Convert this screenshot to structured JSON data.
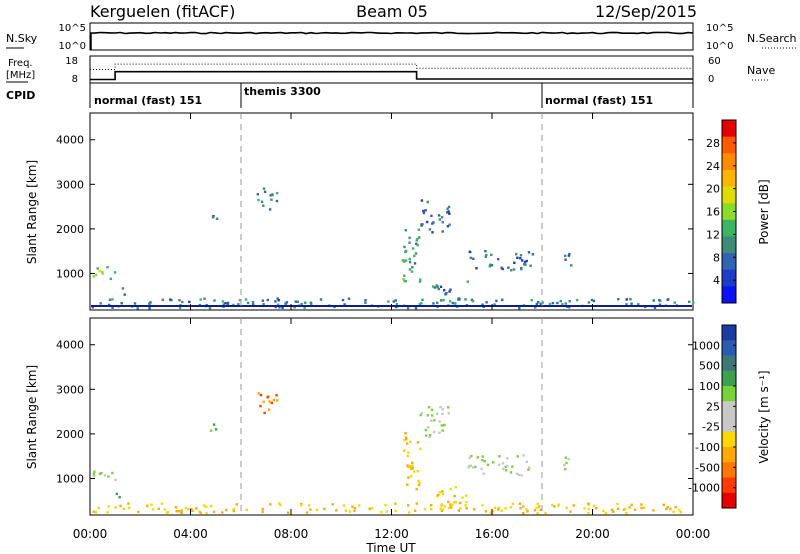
{
  "header": {
    "station": "Kerguelen (fitACF)",
    "beam": "Beam 05",
    "date": "12/Sep/2015"
  },
  "top_panels": {
    "nsky": {
      "label": "N.Sky",
      "right_label": "N.Search",
      "left_ticks": [
        "10^5",
        "10^0"
      ],
      "right_ticks": [
        "10^5",
        "10^0"
      ]
    },
    "freq": {
      "label_line1": "Freq.",
      "label_line2": "[MHz]",
      "right_label": "Nave",
      "left_ticks": [
        "18",
        "8"
      ],
      "right_ticks": [
        "60",
        "0"
      ],
      "freq_steps": [
        [
          0,
          9.3
        ],
        [
          1.0,
          12.2
        ],
        [
          13.0,
          9.5
        ],
        [
          24.0,
          9.5
        ]
      ],
      "nave_steps": [
        [
          0,
          30
        ],
        [
          1.0,
          42
        ],
        [
          13.0,
          33
        ],
        [
          24.0,
          33
        ]
      ]
    },
    "cpid": {
      "label": "CPID",
      "segments": [
        {
          "start": 0,
          "text": "normal (fast) 151"
        },
        {
          "start": 6,
          "text": "themis 3300"
        },
        {
          "start": 18,
          "text": "normal (fast) 151"
        }
      ]
    }
  },
  "panels": {
    "power": {
      "ylabel": "Slant Range [km]",
      "cbar_label": "Power [dB]",
      "cbar_ticks": [
        "28",
        "24",
        "20",
        "16",
        "12",
        "8",
        "4"
      ],
      "cbar_colors": [
        "#e60000",
        "#ff5a00",
        "#ff8c00",
        "#ffb400",
        "#e1dc00",
        "#8cdc28",
        "#3cb464",
        "#3c8c78",
        "#3264b4",
        "#1e3cc8",
        "#0a14f0"
      ]
    },
    "velocity": {
      "ylabel": "Slant Range [km]",
      "cbar_label": "Velocity [m s⁻¹]",
      "cbar_ticks": [
        "1000",
        "500",
        "100",
        "25",
        "-25",
        "-100",
        "-500",
        "-1000"
      ],
      "cbar_colors": [
        "#1a3ca0",
        "#2a5ab4",
        "#3c7878",
        "#3ca050",
        "#78d23c",
        "#c8c8c8",
        "#c8c8c8",
        "#ffd700",
        "#ffaa00",
        "#ff7800",
        "#ff3c00",
        "#e60000"
      ]
    }
  },
  "axes": {
    "xlabel": "Time UT",
    "x_ticks": [
      "00:00",
      "04:00",
      "08:00",
      "12:00",
      "16:00",
      "20:00",
      "00:00"
    ],
    "y_ticks": [
      "4000",
      "3000",
      "2000",
      "1000"
    ]
  },
  "chart_data": {
    "type": "heatmap",
    "title": "Kerguelen (fitACF) Beam 05 12/Sep/2015",
    "xlabel": "Time UT",
    "ylabel": "Slant Range [km]",
    "xlim_hours": [
      0,
      24
    ],
    "ylim_km": [
      180,
      4600
    ],
    "gate_boundaries_hours": [
      6,
      18
    ],
    "scatter_regions": [
      {
        "t0": 0.0,
        "t1": 1.0,
        "r0": 850,
        "r1": 1150,
        "power_db": 14,
        "velocity": 25
      },
      {
        "t0": 1.0,
        "t1": 1.4,
        "r0": 500,
        "r1": 700,
        "power_db": 10,
        "velocity": 100
      },
      {
        "t0": 4.7,
        "t1": 5.1,
        "r0": 2050,
        "r1": 2300,
        "power_db": 6,
        "velocity": 100
      },
      {
        "t0": 6.6,
        "t1": 7.5,
        "r0": 2400,
        "r1": 2900,
        "power_db": 8,
        "velocity": -500
      },
      {
        "t0": 12.4,
        "t1": 13.1,
        "r0": 700,
        "r1": 2200,
        "power_db": 10,
        "velocity": -100
      },
      {
        "t0": 13.1,
        "t1": 14.3,
        "r0": 1900,
        "r1": 2650,
        "power_db": 6,
        "velocity": 25
      },
      {
        "t0": 13.6,
        "t1": 15.0,
        "r0": 300,
        "r1": 800,
        "power_db": 8,
        "velocity": -100
      },
      {
        "t0": 15.0,
        "t1": 17.6,
        "r0": 1050,
        "r1": 1500,
        "power_db": 6,
        "velocity": 25
      },
      {
        "t0": 18.8,
        "t1": 19.2,
        "r0": 1100,
        "r1": 1500,
        "power_db": 6,
        "velocity": 25
      },
      {
        "t0": 0.0,
        "t1": 24.0,
        "r0": 200,
        "r1": 420,
        "power_db": 8,
        "velocity": -100
      }
    ]
  }
}
